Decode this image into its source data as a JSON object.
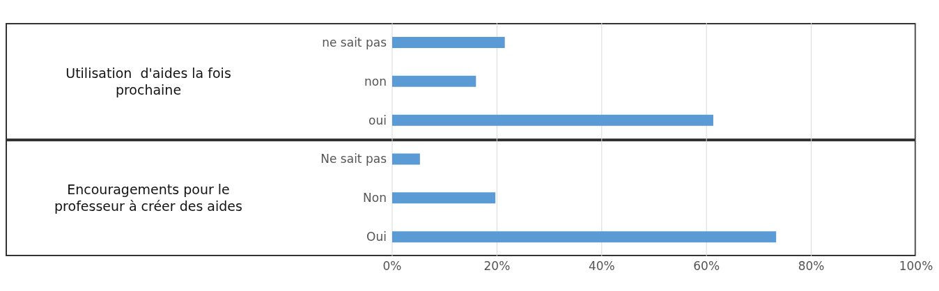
{
  "chart_data": {
    "type": "bar",
    "orientation": "horizontal",
    "categories": [
      "ne sait pas",
      "non",
      "oui",
      "Ne sait pas",
      "Non",
      "Oui"
    ],
    "values": [
      21.5,
      16,
      61.3,
      5.3,
      19.7,
      73.3
    ],
    "color": "#5b9bd5",
    "xlim": [
      0,
      100
    ],
    "xticks": [
      {
        "value": 0,
        "label": "0%"
      },
      {
        "value": 20,
        "label": "20%"
      },
      {
        "value": 40,
        "label": "40%"
      },
      {
        "value": 60,
        "label": "60%"
      },
      {
        "value": 80,
        "label": "80%"
      },
      {
        "value": 100,
        "label": "100%"
      }
    ],
    "grid": "x",
    "annotations": [
      "Utilisation  d'aides la fois prochaine",
      "Encouragements pour le professeur à créer des aides"
    ]
  }
}
